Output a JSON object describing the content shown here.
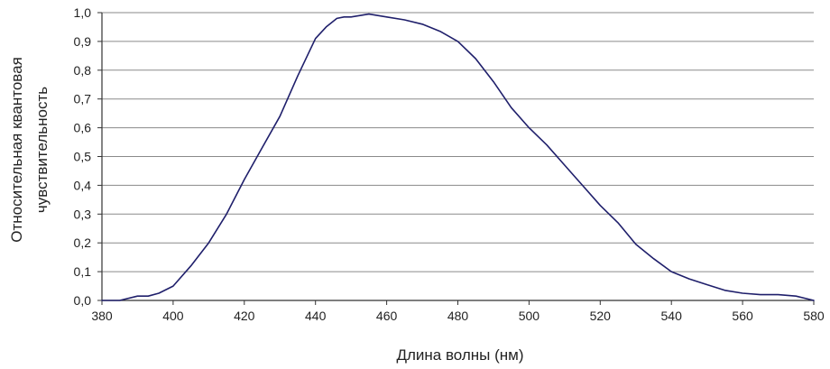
{
  "chart_data": {
    "type": "line",
    "title": "",
    "xlabel": "Длина волны (нм)",
    "ylabel_lines": [
      "Относительная квантовая",
      "чувствительность"
    ],
    "xlim": [
      380,
      580
    ],
    "ylim": [
      0,
      1.0
    ],
    "x_ticks": [
      380,
      400,
      420,
      440,
      460,
      480,
      500,
      520,
      540,
      560,
      580
    ],
    "y_ticks": [
      0.0,
      0.1,
      0.2,
      0.3,
      0.4,
      0.5,
      0.6,
      0.7,
      0.8,
      0.9,
      1.0
    ],
    "x_tick_labels": [
      "380",
      "400",
      "420",
      "440",
      "460",
      "480",
      "500",
      "520",
      "540",
      "560",
      "580"
    ],
    "y_tick_labels": [
      "0,0",
      "0,1",
      "0,2",
      "0,3",
      "0,4",
      "0,5",
      "0,6",
      "0,7",
      "0,8",
      "0,9",
      "1,0"
    ],
    "grid": "horizontal",
    "legend": "none",
    "colors": {
      "line": "#1f1f6b",
      "grid": "#8a8a8a",
      "axis": "#333333",
      "text": "#222222"
    },
    "series": [
      {
        "x": [
          380,
          385,
          390,
          393,
          396,
          400,
          405,
          410,
          415,
          420,
          425,
          430,
          435,
          440,
          443,
          446,
          448,
          450,
          455,
          460,
          465,
          470,
          475,
          480,
          485,
          490,
          495,
          500,
          505,
          510,
          515,
          520,
          525,
          530,
          535,
          540,
          545,
          550,
          555,
          560,
          565,
          570,
          575,
          580
        ],
        "y": [
          0.0,
          0.0,
          0.015,
          0.015,
          0.025,
          0.05,
          0.12,
          0.2,
          0.3,
          0.42,
          0.53,
          0.64,
          0.78,
          0.91,
          0.95,
          0.98,
          0.985,
          0.985,
          0.995,
          0.985,
          0.975,
          0.96,
          0.935,
          0.9,
          0.84,
          0.76,
          0.67,
          0.6,
          0.54,
          0.47,
          0.4,
          0.33,
          0.27,
          0.195,
          0.145,
          0.1,
          0.075,
          0.055,
          0.035,
          0.025,
          0.02,
          0.02,
          0.015,
          0.0
        ]
      }
    ]
  }
}
